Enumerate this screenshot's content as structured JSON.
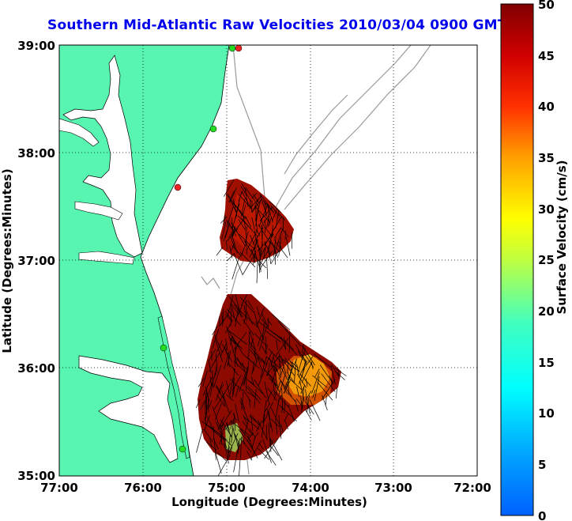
{
  "title": "Southern Mid-Atlantic Raw Velocities 2010/03/04 0900 GMT",
  "xlabel": "Longitude (Degrees:Minutes)",
  "ylabel": "Latitude (Degrees:Minutes)",
  "x_ticks": [
    "77:00",
    "76:00",
    "75:00",
    "74:00",
    "73:00",
    "72:00"
  ],
  "y_ticks": [
    "39:00",
    "38:00",
    "37:00",
    "36:00",
    "35:00"
  ],
  "colorbar": {
    "label": "Surface Velocity (cm/s)",
    "ticks": [
      "0",
      "5",
      "10",
      "15",
      "20",
      "25",
      "30",
      "35",
      "40",
      "45",
      "50"
    ],
    "min": 0,
    "max": 50
  },
  "colors": {
    "land": "#57f5b0",
    "ocean": "#ffffff",
    "coastline": "#000000",
    "bathymetry": "#9a9a9a",
    "title": "#0000ee",
    "station_green": "#22dd22",
    "station_red": "#ee2222"
  },
  "map": {
    "lon_range": [
      -77,
      -72
    ],
    "lat_range": [
      35,
      39
    ],
    "grid": "dotted"
  }
}
